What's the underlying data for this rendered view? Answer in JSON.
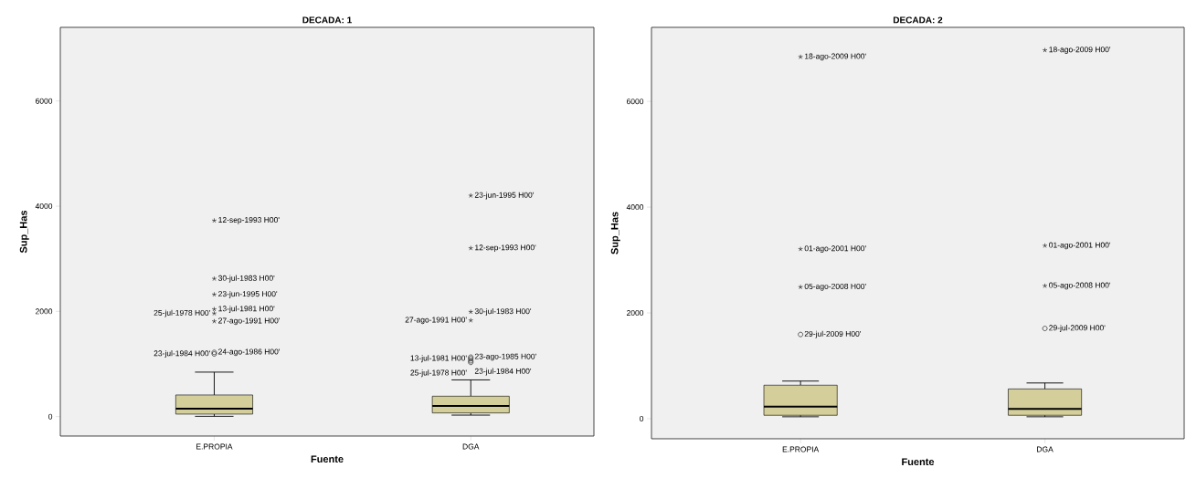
{
  "chart_data": [
    {
      "type": "box",
      "title": "DECADA: 1",
      "xlabel": "Fuente",
      "ylabel": "Sup_Has",
      "categories": [
        "E.PROPIA",
        "DGA"
      ],
      "color": "#d4cf9a",
      "ylim": [
        -370,
        7400
      ],
      "yticks": [
        0,
        2000,
        4000,
        6000
      ],
      "boxes": [
        {
          "low": 5,
          "q1": 47,
          "median": 150,
          "q3": 411,
          "high": 845,
          "outliers": [
            3725,
            2620,
            2320,
            2040,
            1960,
            1810,
            1220,
            1190
          ]
        },
        {
          "low": 28,
          "q1": 69,
          "median": 203,
          "q3": 387,
          "high": 697,
          "outliers": [
            4200,
            3200,
            1990,
            1827,
            1130,
            1100,
            1060,
            1030
          ]
        }
      ],
      "annotations": [
        "12-sep-1993 H00'",
        "30-jul-1983 H00'",
        "23-jun-1995 H00'",
        "13-jul-1981 H00'",
        "25-jul-1978 H00'",
        "27-ago-1991 H00'",
        "24-ago-1986 H00'",
        "23-jul-1984 H00'",
        "23-jun-1995 H00'",
        "12-sep-1993 H00'",
        "30-jul-1983 H00'",
        "27-ago-1991 H00'",
        "23-ago-1985 H00'",
        "13-jul-1981 H00'",
        "23-jul-1984 H00'",
        "25-jul-1978 H00'"
      ]
    },
    {
      "type": "box",
      "title": "DECADA: 2",
      "xlabel": "Fuente",
      "ylabel": "Sup_Has",
      "categories": [
        "E.PROPIA",
        "DGA"
      ],
      "color": "#d4cf9a",
      "ylim": [
        -380,
        7400
      ],
      "yticks": [
        0,
        2000,
        4000,
        6000
      ],
      "boxes": [
        {
          "low": 36,
          "q1": 64,
          "median": 227,
          "q3": 633,
          "high": 711,
          "outliers": [
            6840,
            3206,
            2488,
            1592
          ]
        },
        {
          "low": 36,
          "q1": 64,
          "median": 185,
          "q3": 562,
          "high": 675,
          "outliers": [
            6967,
            3270,
            2510,
            1706
          ]
        }
      ],
      "annotations": [
        "18-ago-2009 H00'",
        "01-ago-2001 H00'",
        "05-ago-2008 H00'",
        "29-jul-2009 H00'",
        "18-ago-2009 H00'",
        "01-ago-2001 H00'",
        "05-ago-2008 H00'",
        "29-jul-2009 H00'"
      ]
    }
  ]
}
